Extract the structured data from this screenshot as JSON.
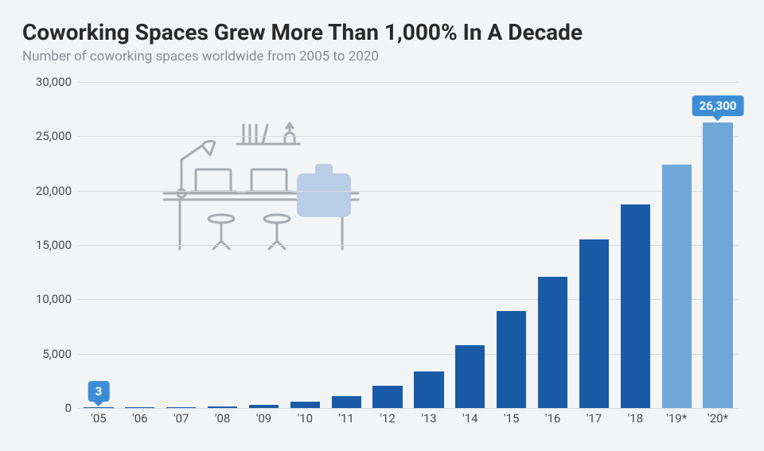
{
  "title": "Coworking Spaces Grew More Than 1,000% In A Decade",
  "subtitle": "Number of coworking spaces worldwide from 2005 to 2020",
  "chart": {
    "type": "bar",
    "categories": [
      "'05",
      "'06",
      "'07",
      "'08",
      "'09",
      "'10",
      "'11",
      "'12",
      "'13",
      "'14",
      "'15",
      "'16",
      "'17",
      "'18",
      "'19*",
      "'20*"
    ],
    "values": [
      3,
      30,
      75,
      160,
      310,
      600,
      1130,
      2070,
      3400,
      5780,
      8900,
      12100,
      15500,
      18700,
      22400,
      26300
    ],
    "bar_colors": [
      "#1a5ba8",
      "#1a5ba8",
      "#1a5ba8",
      "#1a5ba8",
      "#1a5ba8",
      "#1a5ba8",
      "#1a5ba8",
      "#1a5ba8",
      "#1a5ba8",
      "#1a5ba8",
      "#1a5ba8",
      "#1a5ba8",
      "#1a5ba8",
      "#1a5ba8",
      "#6fa8d8",
      "#6fa8d8"
    ],
    "y_ticks": [
      0,
      5000,
      10000,
      15000,
      20000,
      25000,
      30000
    ],
    "y_tick_labels": [
      "0",
      "5,000",
      "10,000",
      "15,000",
      "20,000",
      "25,000",
      "30,000"
    ],
    "ylim": [
      0,
      30000
    ],
    "bar_width_ratio": 0.72,
    "grid_color": "#d8dadc",
    "background_color": "#f3f4f5",
    "callouts": [
      {
        "index": 0,
        "label": "3"
      },
      {
        "index": 15,
        "label": "26,300"
      }
    ],
    "callout_bg": "#3d8dd6",
    "title_fontsize": 28,
    "subtitle_fontsize": 17,
    "axis_fontsize": 15
  },
  "illustration": {
    "stroke": "#a7acb1",
    "accent": "#b9cde6",
    "name": "coworking-desk"
  }
}
